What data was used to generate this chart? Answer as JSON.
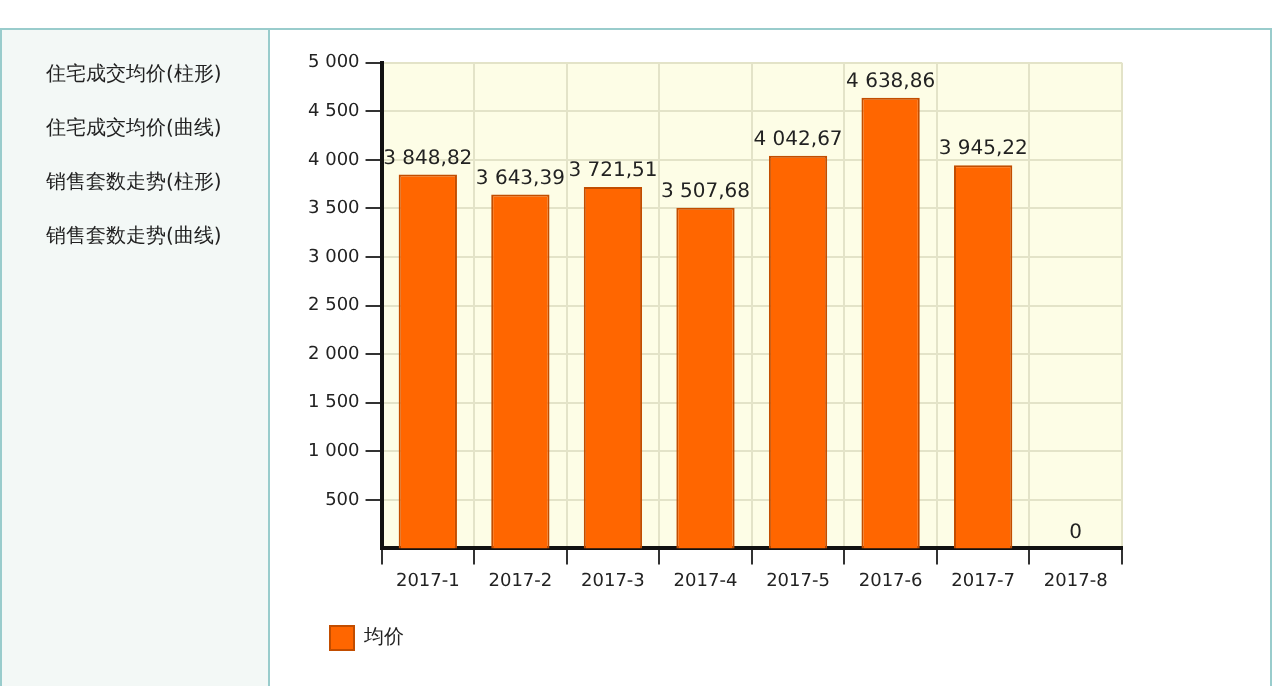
{
  "chart_data": {
    "type": "bar",
    "categories": [
      "2017-1",
      "2017-2",
      "2017-3",
      "2017-4",
      "2017-5",
      "2017-6",
      "2017-7",
      "2017-8"
    ],
    "series": [
      {
        "name": "均价",
        "color": "#ff6600",
        "values": [
          3848.82,
          3643.39,
          3721.51,
          3507.68,
          4042.67,
          4638.86,
          3945.22,
          0
        ],
        "value_labels": [
          "3 848,82",
          "3 643,39",
          "3 721,51",
          "3 507,68",
          "4 042,67",
          "4 638,86",
          "3 945,22",
          "0"
        ]
      }
    ],
    "ylim": [
      0,
      5000
    ],
    "yticks": [
      {
        "value": 500,
        "label": "500"
      },
      {
        "value": 1000,
        "label": "1 000"
      },
      {
        "value": 1500,
        "label": "1 500"
      },
      {
        "value": 2000,
        "label": "2 000"
      },
      {
        "value": 2500,
        "label": "2 500"
      },
      {
        "value": 3000,
        "label": "3 000"
      },
      {
        "value": 3500,
        "label": "3 500"
      },
      {
        "value": 4000,
        "label": "4 000"
      },
      {
        "value": 4500,
        "label": "4 500"
      },
      {
        "value": 5000,
        "label": "5 000"
      }
    ],
    "grid": true,
    "legend": "bottom",
    "annotations": [
      "住宅成交均价(柱形)",
      "住宅成交均价(曲线)",
      "销售套数走势(柱形)",
      "销售套数走势(曲线)"
    ]
  }
}
